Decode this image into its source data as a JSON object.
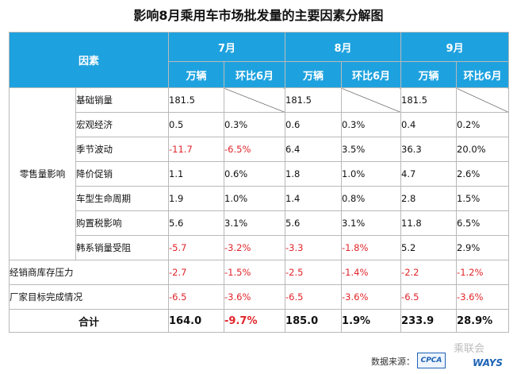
{
  "title": "影响8月乘用车市场批发量的主要因素分解图",
  "header": {
    "factor_label": "因素",
    "months": [
      "7月",
      "8月",
      "9月"
    ],
    "sub_labels": [
      "万辆",
      "环比6月"
    ]
  },
  "group_retail": "零售量影响",
  "rows": [
    {
      "name": "基础销量",
      "vals": [
        "181.5",
        "",
        "181.5",
        "",
        "181.5",
        ""
      ]
    },
    {
      "name": "宏观经济",
      "vals": [
        "0.5",
        "0.3%",
        "0.6",
        "0.3%",
        "0.4",
        "0.2%"
      ]
    },
    {
      "name": "季节波动",
      "vals": [
        "-11.7",
        "-6.5%",
        "6.4",
        "3.5%",
        "36.3",
        "20.0%"
      ]
    },
    {
      "name": "降价促销",
      "vals": [
        "1.1",
        "0.6%",
        "1.8",
        "1.0%",
        "4.7",
        "2.6%"
      ]
    },
    {
      "name": "车型生命周期",
      "vals": [
        "1.9",
        "1.0%",
        "1.4",
        "0.8%",
        "2.8",
        "1.5%"
      ]
    },
    {
      "name": "购置税影响",
      "vals": [
        "5.6",
        "3.1%",
        "5.6",
        "3.1%",
        "11.8",
        "6.5%"
      ]
    },
    {
      "name": "韩系销量受阻",
      "vals": [
        "-5.7",
        "-3.2%",
        "-3.3",
        "-1.8%",
        "5.2",
        "2.9%"
      ]
    }
  ],
  "other_rows": [
    {
      "name": "经销商库存压力",
      "vals": [
        "-2.7",
        "-1.5%",
        "-2.5",
        "-1.4%",
        "-2.2",
        "-1.2%"
      ]
    },
    {
      "name": "厂家目标完成情况",
      "vals": [
        "-6.5",
        "-3.6%",
        "-6.5",
        "-3.6%",
        "-6.5",
        "-3.6%"
      ]
    }
  ],
  "total": {
    "name": "合计",
    "vals": [
      "164.0",
      "-9.7%",
      "185.0",
      "1.9%",
      "233.9",
      "28.9%"
    ]
  },
  "footer": {
    "source_label": "数据来源：",
    "logo_text": "CPCA",
    "watermark": "乘联会",
    "ways_logo": "WAYS"
  },
  "colors": {
    "header_bg": "#1ea2df",
    "negative": "#e0252b",
    "border": "#b9b9b9"
  }
}
